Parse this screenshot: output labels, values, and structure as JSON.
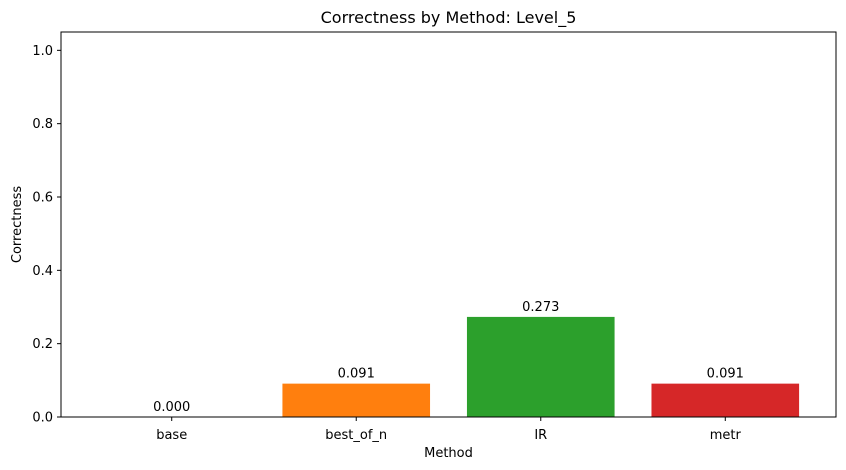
{
  "chart_data": {
    "type": "bar",
    "title": "Correctness by Method: Level_5",
    "xlabel": "Method",
    "ylabel": "Correctness",
    "categories": [
      "base",
      "best_of_n",
      "IR",
      "metr"
    ],
    "values": [
      0.0,
      0.091,
      0.273,
      0.091
    ],
    "data_labels": [
      "0.000",
      "0.091",
      "0.273",
      "0.091"
    ],
    "colors": [
      "#1f77b4",
      "#ff7f0e",
      "#2ca02c",
      "#d62728"
    ],
    "ylim": [
      0,
      1.05
    ],
    "yticks": [
      0.0,
      0.2,
      0.4,
      0.6,
      0.8,
      1.0
    ],
    "ytick_labels": [
      "0.0",
      "0.2",
      "0.4",
      "0.6",
      "0.8",
      "1.0"
    ],
    "grid": false,
    "legend": "none"
  }
}
